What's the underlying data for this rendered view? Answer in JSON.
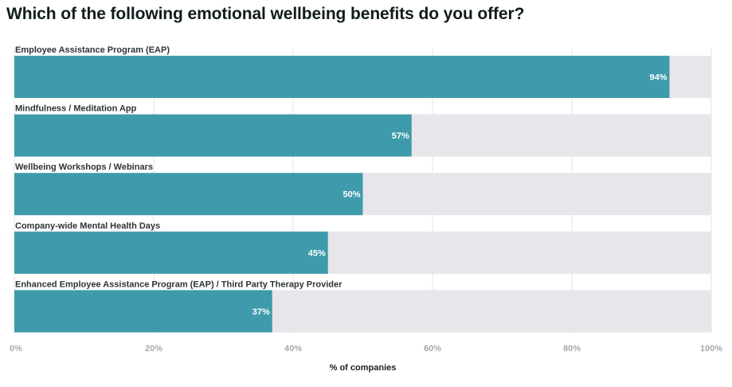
{
  "title": "Which of the following emotional wellbeing benefits do you offer?",
  "chart_data": {
    "type": "bar",
    "orientation": "horizontal",
    "title": "Which of the following emotional wellbeing benefits do you offer?",
    "categories": [
      "Employee Assistance Program (EAP)",
      "Mindfulness / Meditation App",
      "Wellbeing Workshops / Webinars",
      "Company-wide Mental Health Days",
      "Enhanced Employee Assistance Program (EAP) / Third Party Therapy Provider"
    ],
    "values": [
      94,
      57,
      50,
      45,
      37
    ],
    "value_labels": [
      "94%",
      "57%",
      "50%",
      "45%",
      "37%"
    ],
    "xlabel": "% of companies",
    "ylabel": "",
    "xlim": [
      0,
      100
    ],
    "xticks": [
      0,
      20,
      40,
      60,
      80,
      100
    ],
    "xtick_labels": [
      "0%",
      "20%",
      "40%",
      "60%",
      "80%",
      "100%"
    ],
    "colors": {
      "bar": "#3e9bab",
      "track": "#e7e6eb",
      "grid": "#e6e6e6"
    }
  }
}
